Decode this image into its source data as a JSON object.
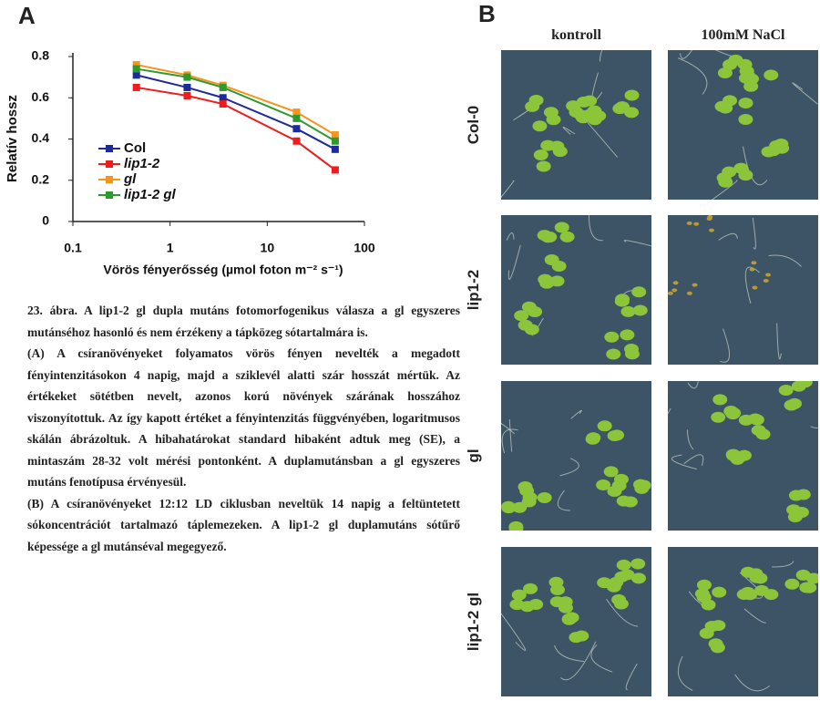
{
  "chart_data": {
    "type": "line",
    "panel_label": "A",
    "x_label": "Vörös fényerősség (µmol foton m⁻² s⁻¹)",
    "y_label": "Relatív hossz",
    "x": [
      0.45,
      1.5,
      3.5,
      20,
      50
    ],
    "x_log": true,
    "xlim": [
      0.1,
      100
    ],
    "xticks": [
      0.1,
      1,
      10,
      100
    ],
    "ylim": [
      0,
      0.8
    ],
    "yticks": [
      0,
      0.2,
      0.4,
      0.6,
      0.8
    ],
    "grid": false,
    "legend": "lower left",
    "series": [
      {
        "name": "Col",
        "color": "#1c2a9c",
        "values": [
          0.71,
          0.65,
          0.6,
          0.45,
          0.35
        ]
      },
      {
        "name": "lip1-2",
        "color": "#ee1c1c",
        "values": [
          0.65,
          0.61,
          0.57,
          0.39,
          0.25
        ]
      },
      {
        "name": "gl",
        "color": "#f7941d",
        "values": [
          0.76,
          0.71,
          0.66,
          0.53,
          0.42
        ]
      },
      {
        "name": "lip1-2 gl",
        "color": "#2e9a2e",
        "values": [
          0.74,
          0.7,
          0.65,
          0.5,
          0.39
        ]
      }
    ]
  },
  "panel_b": {
    "panel_label": "B",
    "columns": [
      "kontroll",
      "100mM NaCl"
    ],
    "rows": [
      "Col-0",
      "lip1-2",
      "gl",
      "lip1-2 gl"
    ]
  },
  "caption": {
    "paragraphs": [
      "23. ábra. A lip1-2 gl dupla mutáns fotomorfogenikus válasza a gl egyszeres mutánséhoz hasonló és nem érzékeny a tápközeg sótartalmára is.",
      "(A) A csíranövényeket folyamatos vörös fényen nevelték a megadott fényintenzitásokon 4 napig, majd a sziklevél alatti szár hosszát mértük. Az értékeket sötétben nevelt, azonos korú növények szárának hosszához viszonyítottuk. Az így kapott értéket a fényintenzitás függvényében, logaritmusos skálán ábrázoltuk. A hibahatárokat standard hibaként adtuk meg (SE), a mintaszám 28-32 volt mérési pontonként. A duplamutánsban a gl egyszeres mutáns fenotípusa érvényesül.",
      "(B) A csíranövényeket 12:12 LD ciklusban neveltük 14 napig a feltüntetett sókoncentrációt tartalmazó táplemezeken. A lip1-2 gl duplamutáns sótűrő képessége a gl mutánséval megegyező."
    ]
  }
}
